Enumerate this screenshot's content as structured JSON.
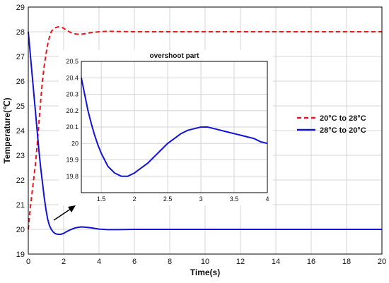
{
  "chart_data": [
    {
      "type": "line",
      "xlabel": "Time(s)",
      "ylabel": "Temperature(℃)",
      "xlim": [
        0,
        20
      ],
      "ylim": [
        19,
        29
      ],
      "xticks": [
        "0",
        "2",
        "4",
        "6",
        "8",
        "10",
        "12",
        "14",
        "16",
        "18",
        "20"
      ],
      "yticks": [
        "19",
        "20",
        "21",
        "22",
        "23",
        "24",
        "25",
        "26",
        "27",
        "28",
        "29"
      ],
      "grid": true,
      "legend_position": "right",
      "series": [
        {
          "name": "20°C to 28°C",
          "color": "#e8161b",
          "dash": true,
          "points": [
            [
              0,
              20
            ],
            [
              0.1,
              20.8
            ],
            [
              0.2,
              21.4
            ],
            [
              0.3,
              22.0
            ],
            [
              0.4,
              22.6
            ],
            [
              0.5,
              23.4
            ],
            [
              0.6,
              24.3
            ],
            [
              0.7,
              25.2
            ],
            [
              0.8,
              26.0
            ],
            [
              0.9,
              26.6
            ],
            [
              1.0,
              27.1
            ],
            [
              1.1,
              27.5
            ],
            [
              1.2,
              27.8
            ],
            [
              1.3,
              28.0
            ],
            [
              1.4,
              28.1
            ],
            [
              1.5,
              28.15
            ],
            [
              1.6,
              28.18
            ],
            [
              1.7,
              28.2
            ],
            [
              1.8,
              28.2
            ],
            [
              1.9,
              28.18
            ],
            [
              2.0,
              28.14
            ],
            [
              2.2,
              28.05
            ],
            [
              2.4,
              27.97
            ],
            [
              2.6,
              27.92
            ],
            [
              2.8,
              27.9
            ],
            [
              3.0,
              27.9
            ],
            [
              3.2,
              27.92
            ],
            [
              3.5,
              27.96
            ],
            [
              4.0,
              28.0
            ],
            [
              4.5,
              28.02
            ],
            [
              5.0,
              28.01
            ],
            [
              6.0,
              28.0
            ],
            [
              20,
              28.0
            ]
          ]
        },
        {
          "name": "28°C to 20°C",
          "color": "#1212d8",
          "dash": false,
          "points": [
            [
              0,
              28
            ],
            [
              0.1,
              27.2
            ],
            [
              0.2,
              26.4
            ],
            [
              0.3,
              25.6
            ],
            [
              0.4,
              24.8
            ],
            [
              0.5,
              24.0
            ],
            [
              0.6,
              23.2
            ],
            [
              0.7,
              22.5
            ],
            [
              0.8,
              21.9
            ],
            [
              0.9,
              21.3
            ],
            [
              1.0,
              20.8
            ],
            [
              1.1,
              20.4
            ],
            [
              1.2,
              20.15
            ],
            [
              1.3,
              20.0
            ],
            [
              1.4,
              19.9
            ],
            [
              1.5,
              19.84
            ],
            [
              1.6,
              19.81
            ],
            [
              1.7,
              19.8
            ],
            [
              1.8,
              19.8
            ],
            [
              1.9,
              19.81
            ],
            [
              2.0,
              19.84
            ],
            [
              2.2,
              19.92
            ],
            [
              2.4,
              19.99
            ],
            [
              2.6,
              20.05
            ],
            [
              2.8,
              20.08
            ],
            [
              3.0,
              20.1
            ],
            [
              3.2,
              20.09
            ],
            [
              3.5,
              20.07
            ],
            [
              4.0,
              20.01
            ],
            [
              4.5,
              19.99
            ],
            [
              5.0,
              19.99
            ],
            [
              6.0,
              20.0
            ],
            [
              20,
              20.0
            ]
          ]
        }
      ]
    },
    {
      "type": "line",
      "title": "overshoot part",
      "xlim": [
        1.2,
        4
      ],
      "ylim": [
        19.7,
        20.5
      ],
      "xticks": [
        "1.5",
        "2",
        "2.5",
        "3",
        "3.5",
        "4"
      ],
      "yticks": [
        "19.8",
        "19.9",
        "20",
        "20.1",
        "20.2",
        "20.3",
        "20.4",
        "20.5"
      ],
      "grid": true,
      "series": [
        {
          "color": "#1212d8",
          "points": [
            [
              1.2,
              20.4
            ],
            [
              1.25,
              20.3
            ],
            [
              1.3,
              20.2
            ],
            [
              1.35,
              20.12
            ],
            [
              1.4,
              20.05
            ],
            [
              1.45,
              19.99
            ],
            [
              1.5,
              19.94
            ],
            [
              1.55,
              19.9
            ],
            [
              1.6,
              19.86
            ],
            [
              1.65,
              19.84
            ],
            [
              1.7,
              19.82
            ],
            [
              1.75,
              19.81
            ],
            [
              1.8,
              19.8
            ],
            [
              1.85,
              19.8
            ],
            [
              1.9,
              19.8
            ],
            [
              1.95,
              19.81
            ],
            [
              2.0,
              19.82
            ],
            [
              2.1,
              19.85
            ],
            [
              2.2,
              19.88
            ],
            [
              2.3,
              19.92
            ],
            [
              2.4,
              19.96
            ],
            [
              2.5,
              20.0
            ],
            [
              2.6,
              20.03
            ],
            [
              2.7,
              20.06
            ],
            [
              2.8,
              20.08
            ],
            [
              2.9,
              20.09
            ],
            [
              3.0,
              20.1
            ],
            [
              3.1,
              20.1
            ],
            [
              3.2,
              20.09
            ],
            [
              3.3,
              20.08
            ],
            [
              3.4,
              20.07
            ],
            [
              3.5,
              20.06
            ],
            [
              3.6,
              20.05
            ],
            [
              3.7,
              20.04
            ],
            [
              3.8,
              20.03
            ],
            [
              3.9,
              20.01
            ],
            [
              4.0,
              20.0
            ]
          ]
        }
      ]
    }
  ]
}
